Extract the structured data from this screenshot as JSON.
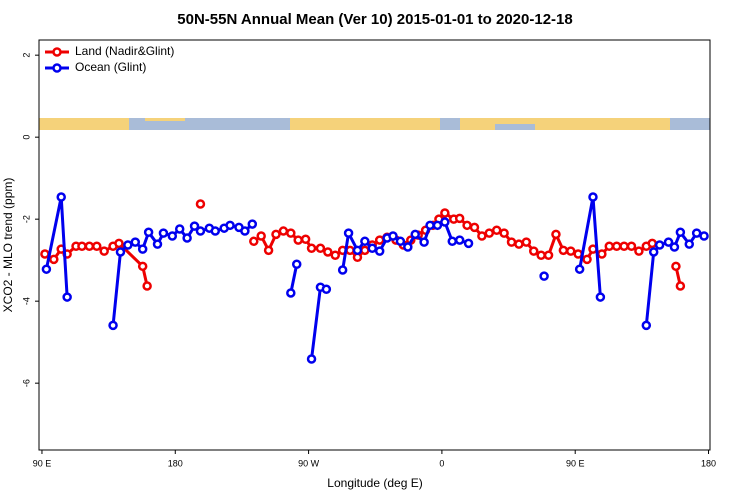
{
  "chart_data": {
    "type": "line",
    "title": "50N-55N Annual Mean (Ver 10)   2015-01-01 to 2020-12-18",
    "xlabel": "Longitude (deg E)",
    "ylabel": "XCO2 - MLO trend (ppm)",
    "xlim": [
      88,
      541
    ],
    "xticks": [
      {
        "value": 90,
        "label": "90 E"
      },
      {
        "value": 180,
        "label": "180"
      },
      {
        "value": 270,
        "label": "90 W"
      },
      {
        "value": 360,
        "label": "0"
      },
      {
        "value": 450,
        "label": "90 E"
      },
      {
        "value": 540,
        "label": "180"
      }
    ],
    "ylim": [
      -7.63,
      2.37
    ],
    "yticks": [
      2,
      0,
      -2,
      -4,
      -6
    ],
    "legend": "top-left",
    "series": [
      {
        "name": "Land (Nadir&Glint)",
        "color": "#ee0000",
        "x": [
          92,
          98,
          103,
          107,
          113,
          117,
          122,
          127,
          132,
          138,
          142,
          158,
          161,
          null,
          197,
          null,
          233,
          238,
          243,
          248,
          253,
          258,
          263,
          268,
          272,
          278,
          283,
          288,
          293,
          298,
          303,
          308,
          313,
          318,
          323,
          329,
          334,
          339,
          344,
          349,
          354,
          358,
          362,
          368,
          372,
          377,
          382,
          387,
          392,
          397,
          402,
          407,
          412,
          417,
          422,
          427,
          432,
          437,
          442,
          447,
          452,
          458,
          462,
          468,
          473,
          478,
          483,
          488,
          493,
          498,
          502,
          null,
          518,
          521
        ],
        "values": [
          -2.85,
          -2.98,
          -2.73,
          -2.85,
          -2.66,
          -2.66,
          -2.66,
          -2.66,
          -2.78,
          -2.66,
          -2.59,
          -3.15,
          -3.63,
          null,
          -1.63,
          null,
          -2.54,
          -2.41,
          -2.76,
          -2.37,
          -2.29,
          -2.34,
          -2.51,
          -2.49,
          -2.71,
          -2.71,
          -2.8,
          -2.88,
          -2.76,
          -2.76,
          -2.93,
          -2.76,
          -2.63,
          -2.51,
          -2.44,
          -2.51,
          -2.63,
          -2.51,
          -2.39,
          -2.27,
          -2.15,
          -2.0,
          -1.85,
          -2.0,
          -1.98,
          -2.15,
          -2.2,
          -2.41,
          -2.34,
          -2.27,
          -2.34,
          -2.56,
          -2.61,
          -2.56,
          -2.78,
          -2.88,
          -2.88,
          -2.37,
          -2.76,
          -2.78,
          -2.85,
          -2.98,
          -2.73,
          -2.85,
          -2.66,
          -2.66,
          -2.66,
          -2.66,
          -2.78,
          -2.66,
          -2.59,
          null,
          -3.15,
          -3.63
        ]
      },
      {
        "name": "Ocean (Glint)",
        "color": "#0000ee",
        "x": [
          93,
          103,
          107,
          null,
          138,
          143,
          148,
          153,
          158,
          162,
          168,
          172,
          178,
          183,
          188,
          193,
          197,
          203,
          207,
          213,
          217,
          223,
          227,
          232,
          null,
          258,
          262,
          null,
          272,
          278,
          282,
          null,
          293,
          297,
          303,
          308,
          313,
          318,
          323,
          327,
          332,
          337,
          342,
          348,
          352,
          357,
          362,
          367,
          372,
          378,
          null,
          429,
          null,
          453,
          462,
          467,
          null,
          498,
          503,
          507,
          513,
          517,
          521,
          527,
          532,
          537
        ],
        "values": [
          -3.22,
          -1.46,
          -3.9,
          null,
          -4.59,
          -2.8,
          -2.63,
          -2.56,
          -2.73,
          -2.32,
          -2.61,
          -2.34,
          -2.41,
          -2.24,
          -2.46,
          -2.17,
          -2.29,
          -2.22,
          -2.29,
          -2.22,
          -2.15,
          -2.2,
          -2.29,
          -2.12,
          null,
          -3.8,
          -3.1,
          null,
          -5.41,
          -3.66,
          -3.71,
          null,
          -3.24,
          -2.34,
          -2.76,
          -2.54,
          -2.71,
          -2.78,
          -2.46,
          -2.41,
          -2.54,
          -2.68,
          -2.37,
          -2.56,
          -2.15,
          -2.15,
          -2.07,
          -2.54,
          -2.51,
          -2.59,
          null,
          -3.39,
          null,
          -3.22,
          -1.46,
          -3.9,
          null,
          -4.59,
          -2.8,
          -2.63,
          -2.56,
          -2.68,
          -2.32,
          -2.61,
          -2.34,
          -2.41
        ]
      }
    ]
  }
}
